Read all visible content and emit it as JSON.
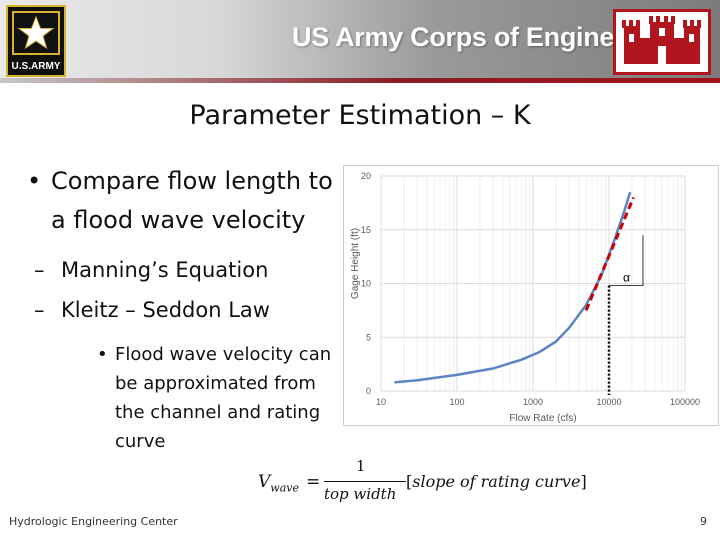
{
  "header": {
    "army_logo_text": "U.S.ARMY",
    "title": "US Army Corps of Engineers"
  },
  "slide": {
    "title": "Parameter Estimation – K",
    "bullet1": "Compare flow length to a flood wave velocity",
    "sub1_dash": "–",
    "sub1": "Manning’s Equation",
    "sub2_dash": "–",
    "sub2": "Kleitz – Seddon Law",
    "subsub": "Flood wave velocity can be approximated from the channel and rating curve"
  },
  "formula": {
    "lhs": "V",
    "lhs_sub": "wave",
    "eq": "=",
    "numerator": "1",
    "denominator": "top width",
    "bracket_open": "[",
    "bracket_text": "slope of rating curve",
    "bracket_close": "]"
  },
  "chart_data": {
    "type": "line",
    "xlabel": "Flow Rate (cfs)",
    "ylabel": "Gage Height (ft)",
    "x_scale": "log",
    "xlim": [
      10,
      100000
    ],
    "ylim": [
      0,
      20
    ],
    "x_ticks": [
      10,
      100,
      1000,
      10000,
      100000
    ],
    "x_tick_labels": [
      "10",
      "100",
      "1000",
      "10000",
      "100000"
    ],
    "y_ticks": [
      0,
      5,
      10,
      15,
      20
    ],
    "y_tick_labels": [
      "0",
      "5",
      "10",
      "15",
      "20"
    ],
    "grid": true,
    "series": [
      {
        "color": "#5b84c4",
        "points": [
          [
            15,
            0.8
          ],
          [
            30,
            1.0
          ],
          [
            100,
            1.5
          ],
          [
            300,
            2.1
          ],
          [
            700,
            2.9
          ],
          [
            1200,
            3.6
          ],
          [
            2000,
            4.6
          ],
          [
            3000,
            5.9
          ],
          [
            5000,
            8.0
          ],
          [
            8000,
            10.8
          ],
          [
            12000,
            14.2
          ],
          [
            16000,
            16.8
          ],
          [
            19000,
            18.5
          ]
        ]
      }
    ],
    "annotations": {
      "tangent_line": {
        "color": "#cc0000",
        "points": [
          [
            5000,
            7.5
          ],
          [
            21000,
            18.0
          ]
        ]
      },
      "vertical_line_x": 10000,
      "angle_label": "α"
    }
  },
  "footer": {
    "org": "Hydrologic Engineering Center",
    "page": "9"
  },
  "colors": {
    "banner_red": "#b1161e",
    "army_gold": "#d6b32a",
    "curve_blue": "#5b84c4",
    "tangent_red": "#cc0000"
  }
}
